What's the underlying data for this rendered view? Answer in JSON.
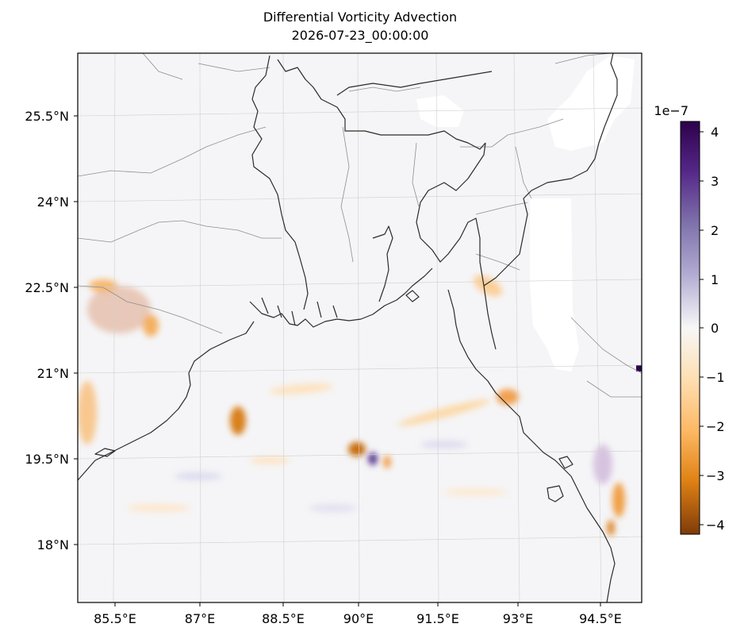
{
  "title": "Differential Vorticity Advection",
  "subtitle": "2026-07-23_00:00:00",
  "longitude_ticks": [
    "85.5°E",
    "87°E",
    "88.5°E",
    "90°E",
    "91.5°E",
    "93°E",
    "94.5°E"
  ],
  "latitude_ticks": [
    "25.5°N",
    "24°N",
    "22.5°N",
    "21°N",
    "19.5°N",
    "18°N"
  ],
  "colorbar": {
    "exponent_label": "1e−7",
    "ticks": [
      "4",
      "3",
      "2",
      "1",
      "0",
      "−1",
      "−2",
      "−3",
      "−4"
    ],
    "colormap": "PuOr",
    "range": [
      -4.2,
      4.2
    ],
    "colors": {
      "top": "#2d004b",
      "high": "#8073ac",
      "mid": "#f7f7f7",
      "low": "#fdb863",
      "bottom": "#7f3b08"
    }
  },
  "map_features": [
    "coastline",
    "country-borders",
    "state-borders",
    "gridlines",
    "missing-data-white"
  ]
}
